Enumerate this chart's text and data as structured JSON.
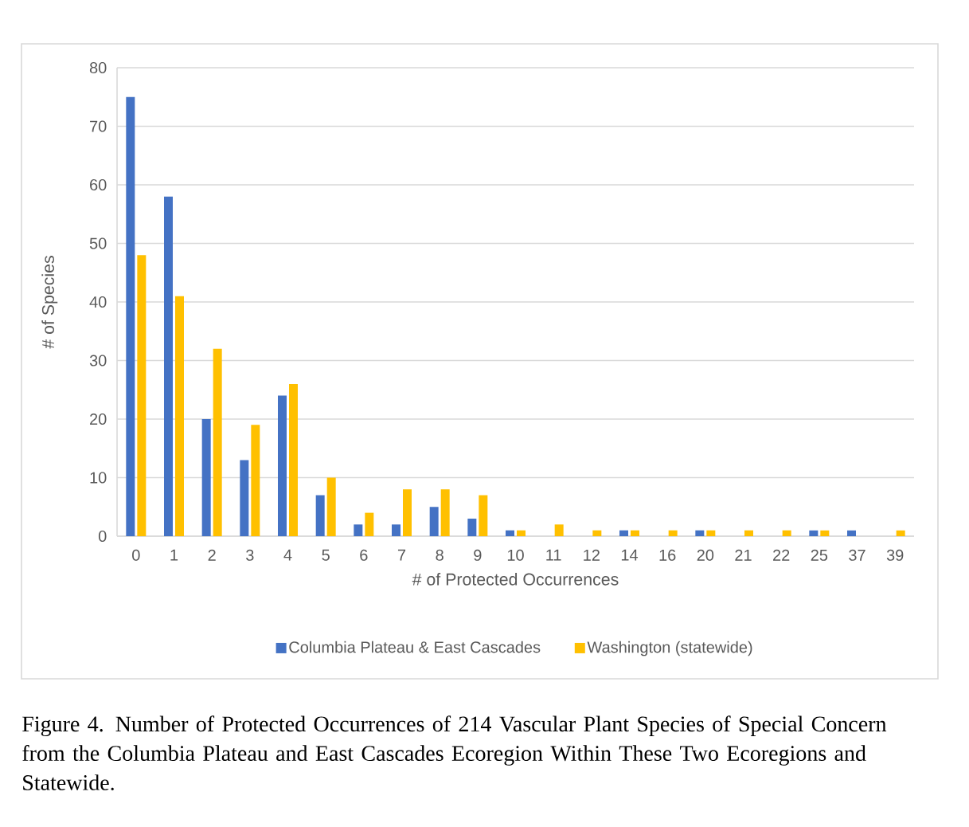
{
  "chart_data": {
    "type": "bar",
    "xlabel": "# of Protected Occurrences",
    "ylabel": "# of Species",
    "categories": [
      "0",
      "1",
      "2",
      "3",
      "4",
      "5",
      "6",
      "7",
      "8",
      "9",
      "10",
      "11",
      "12",
      "14",
      "16",
      "20",
      "21",
      "22",
      "25",
      "37",
      "39"
    ],
    "series": [
      {
        "name": "Columbia Plateau & East Cascades",
        "color": "#4472c4",
        "values": [
          75,
          58,
          20,
          13,
          24,
          7,
          2,
          2,
          5,
          3,
          1,
          0,
          0,
          1,
          0,
          1,
          0,
          0,
          1,
          1,
          0
        ]
      },
      {
        "name": "Washington (statewide)",
        "color": "#ffc000",
        "values": [
          48,
          41,
          32,
          19,
          26,
          10,
          4,
          8,
          8,
          7,
          1,
          2,
          1,
          1,
          1,
          1,
          1,
          1,
          1,
          0,
          1
        ]
      }
    ],
    "ylim": [
      0,
      80
    ],
    "yticks": [
      0,
      10,
      20,
      30,
      40,
      50,
      60,
      70,
      80
    ],
    "grid": "y",
    "legend": "bottom",
    "annotations": [
      "Figure 4. Number of Protected Occurrences of 214 Vascular Plant Species of Special Concern from the Columbia Plateau and East Cascades Ecoregion Within These Two Ecoregions and Statewide."
    ]
  }
}
